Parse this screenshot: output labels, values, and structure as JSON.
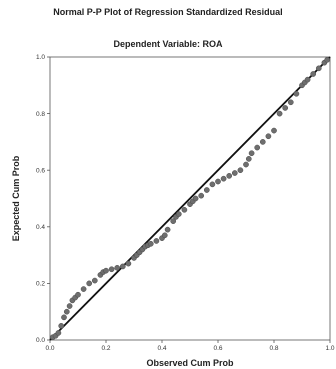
{
  "chart_data": {
    "type": "scatter",
    "title": "Normal P-P Plot of Regression Standardized Residual",
    "subtitle": "Dependent Variable: ROA",
    "xlabel": "Observed Cum Prob",
    "ylabel": "Expected Cum Prob",
    "xlim": [
      0,
      1
    ],
    "ylim": [
      0,
      1
    ],
    "xticks": [
      "0.0",
      "0.2",
      "0.4",
      "0.6",
      "0.8",
      "1.0"
    ],
    "yticks": [
      "0.0",
      "0.2",
      "0.4",
      "0.6",
      "0.8",
      "1.0"
    ],
    "grid": false,
    "legend": "none",
    "reference_line": {
      "from": [
        0,
        0
      ],
      "to": [
        1,
        1
      ]
    },
    "marker_color": "#6e6e6e",
    "line_color": "#111111",
    "series": [
      {
        "points": [
          [
            0.01,
            0.01
          ],
          [
            0.02,
            0.015
          ],
          [
            0.03,
            0.025
          ],
          [
            0.04,
            0.05
          ],
          [
            0.05,
            0.08
          ],
          [
            0.06,
            0.1
          ],
          [
            0.07,
            0.12
          ],
          [
            0.08,
            0.14
          ],
          [
            0.09,
            0.15
          ],
          [
            0.1,
            0.16
          ],
          [
            0.12,
            0.18
          ],
          [
            0.14,
            0.2
          ],
          [
            0.16,
            0.21
          ],
          [
            0.18,
            0.23
          ],
          [
            0.19,
            0.24
          ],
          [
            0.2,
            0.245
          ],
          [
            0.22,
            0.25
          ],
          [
            0.24,
            0.255
          ],
          [
            0.26,
            0.26
          ],
          [
            0.28,
            0.27
          ],
          [
            0.3,
            0.29
          ],
          [
            0.31,
            0.3
          ],
          [
            0.32,
            0.31
          ],
          [
            0.33,
            0.32
          ],
          [
            0.34,
            0.33
          ],
          [
            0.35,
            0.335
          ],
          [
            0.36,
            0.34
          ],
          [
            0.38,
            0.35
          ],
          [
            0.4,
            0.36
          ],
          [
            0.41,
            0.37
          ],
          [
            0.42,
            0.39
          ],
          [
            0.44,
            0.42
          ],
          [
            0.45,
            0.435
          ],
          [
            0.46,
            0.445
          ],
          [
            0.48,
            0.46
          ],
          [
            0.5,
            0.48
          ],
          [
            0.51,
            0.49
          ],
          [
            0.52,
            0.5
          ],
          [
            0.54,
            0.51
          ],
          [
            0.56,
            0.53
          ],
          [
            0.58,
            0.55
          ],
          [
            0.6,
            0.56
          ],
          [
            0.62,
            0.57
          ],
          [
            0.64,
            0.58
          ],
          [
            0.66,
            0.59
          ],
          [
            0.68,
            0.6
          ],
          [
            0.7,
            0.62
          ],
          [
            0.71,
            0.64
          ],
          [
            0.72,
            0.66
          ],
          [
            0.74,
            0.68
          ],
          [
            0.76,
            0.7
          ],
          [
            0.78,
            0.72
          ],
          [
            0.8,
            0.74
          ],
          [
            0.82,
            0.8
          ],
          [
            0.84,
            0.82
          ],
          [
            0.86,
            0.84
          ],
          [
            0.88,
            0.87
          ],
          [
            0.9,
            0.9
          ],
          [
            0.91,
            0.91
          ],
          [
            0.92,
            0.92
          ],
          [
            0.94,
            0.94
          ],
          [
            0.96,
            0.96
          ],
          [
            0.98,
            0.98
          ],
          [
            0.99,
            0.99
          ]
        ]
      }
    ]
  }
}
